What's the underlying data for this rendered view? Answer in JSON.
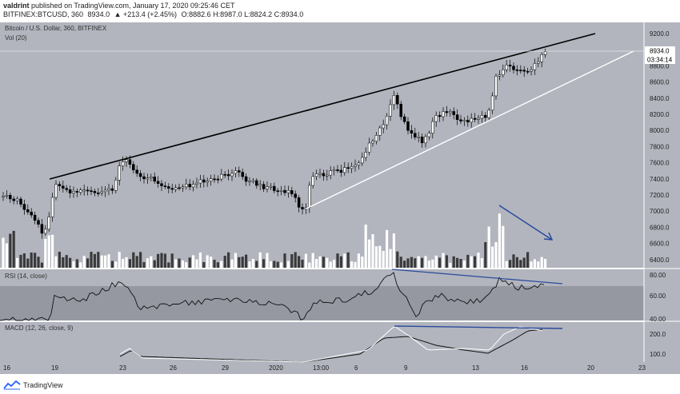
{
  "header": {
    "author": "valdrint",
    "published_text": "published on TradingView.com, January 17, 2020 09:25:46 CET",
    "symbol": "BITFINEX:BTCUSD, 360",
    "price": "8934.0",
    "change": "▲ +213.4 (+2.45%)",
    "ohlc": "O:8882.6 H:8987.0 L:8824.2 C:8934.0"
  },
  "main_pane": {
    "title": "Bitcoin / U.S. Dollar, 360, BITFINEX",
    "vol_label": "Vol (20)",
    "last_price": "8934.0",
    "countdown": "03:34:14",
    "price_ticks": [
      "9200.0",
      "9000.0",
      "8800.0",
      "8600.0",
      "8400.0",
      "8200.0",
      "8000.0",
      "7800.0",
      "7600.0",
      "7400.0",
      "7200.0",
      "7000.0",
      "6800.0",
      "6600.0",
      "6400.0"
    ]
  },
  "rsi_pane": {
    "title": "RSI (14, close)",
    "ticks": [
      "80.00",
      "60.00",
      "40.00"
    ]
  },
  "macd_pane": {
    "title": "MACD (12, 26, close, 9)",
    "ticks": [
      "200.0",
      "100.0"
    ]
  },
  "time_axis": {
    "labels": [
      "16",
      "19",
      "23",
      "26",
      "29",
      "2020",
      "13:00",
      "6",
      "9",
      "13",
      "16",
      "20",
      "23"
    ]
  },
  "footer": {
    "brand": "TradingView"
  },
  "colors": {
    "background": "#b2b5be",
    "band": "#9598a1",
    "up_candle": "#ffffff",
    "down_candle": "#000000",
    "resistance_line": "#000000",
    "support_line": "#ffffff",
    "divergence_line": "#2a4a9c"
  }
}
